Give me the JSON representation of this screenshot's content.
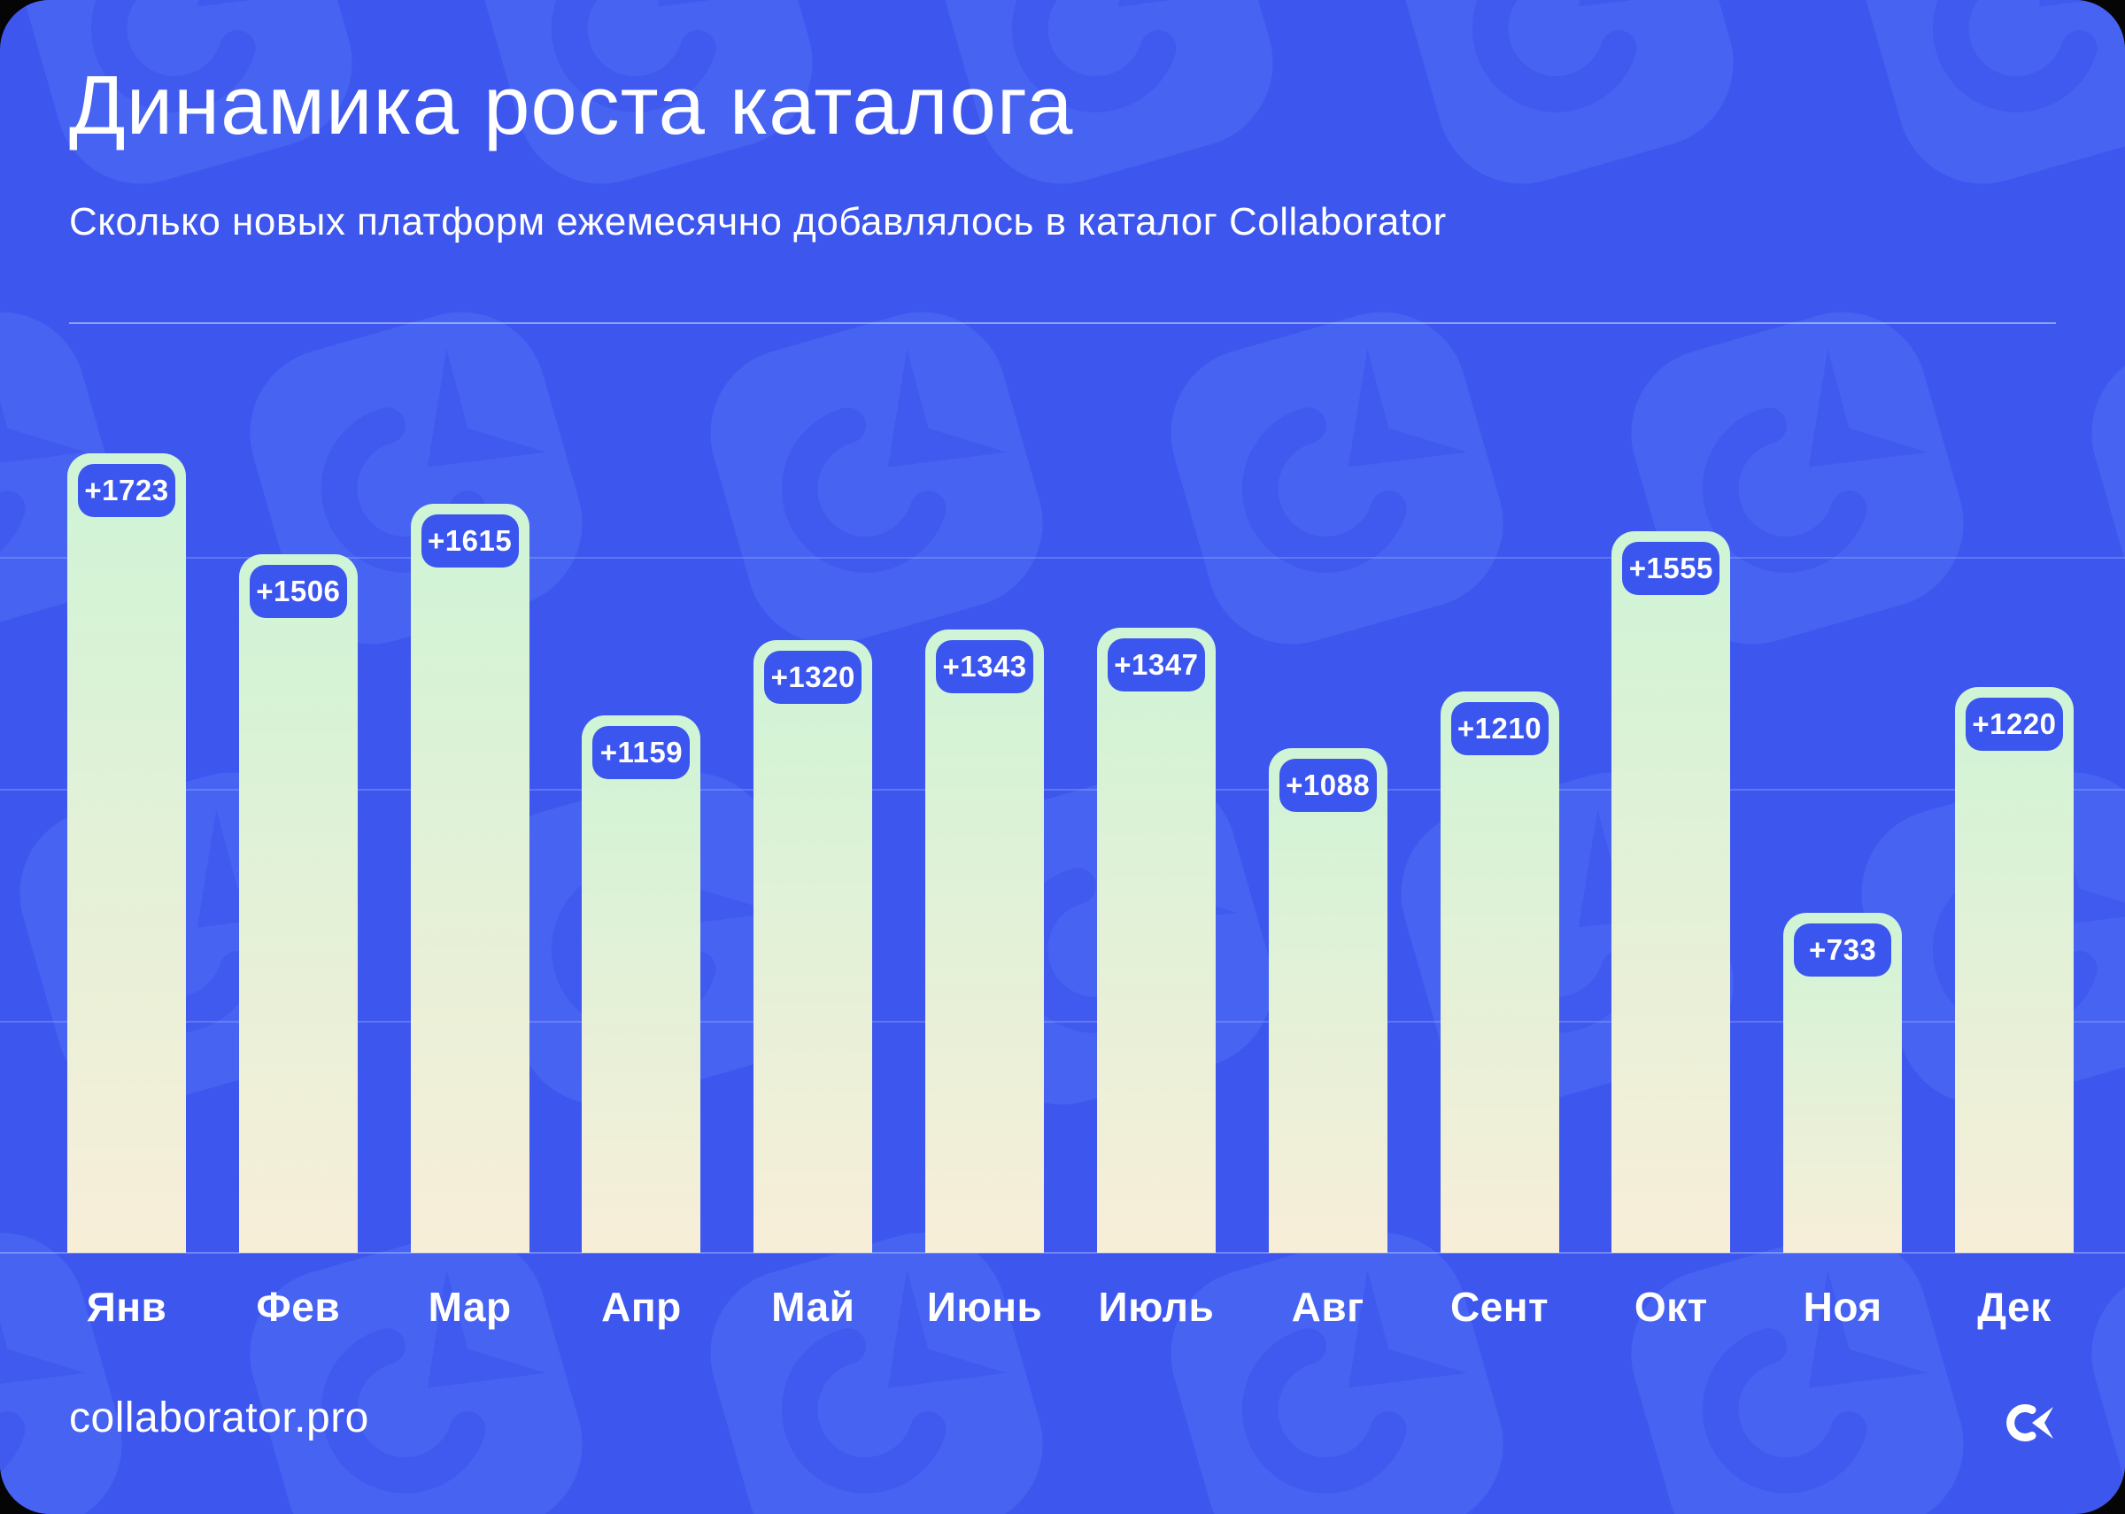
{
  "card": {
    "background_color": "#3D57EE",
    "corner_outside_color": "#050505",
    "pattern_tile_color": "#4663F2",
    "pattern_glyph_color": "#4059EF"
  },
  "header": {
    "title": "Динамика роста каталога",
    "subtitle": "Сколько новых платформ ежемесячно добавлялось в каталог Collaborator"
  },
  "chart_data": {
    "type": "bar",
    "title": "Динамика роста каталога",
    "subtitle": "Сколько новых платформ ежемесячно добавлялось в каталог Collaborator",
    "categories": [
      "Янв",
      "Фев",
      "Мар",
      "Апр",
      "Май",
      "Июнь",
      "Июль",
      "Авг",
      "Сент",
      "Окт",
      "Ноя",
      "Дек"
    ],
    "values": [
      1723,
      1506,
      1615,
      1159,
      1320,
      1343,
      1347,
      1088,
      1210,
      1555,
      733,
      1220
    ],
    "data_labels": [
      "+1723",
      "+1506",
      "+1615",
      "+1159",
      "+1320",
      "+1343",
      "+1347",
      "+1088",
      "+1210",
      "+1555",
      "+733",
      "+1220"
    ],
    "label_prefix": "+",
    "xlabel": "",
    "ylabel": "",
    "ylim": [
      0,
      1800
    ],
    "gridline_values": [
      500,
      1000,
      1500
    ],
    "grid": true,
    "legend": false,
    "bar_gradient_top": "#CFF4D6",
    "bar_gradient_bottom": "#F8EED8",
    "badge_background": "#3B55EF",
    "badge_text_color": "#FFFFFF"
  },
  "footer": {
    "site_url": "collaborator.pro",
    "logo_name": "collaborator-logo",
    "logo_color": "#FFFFFF"
  }
}
